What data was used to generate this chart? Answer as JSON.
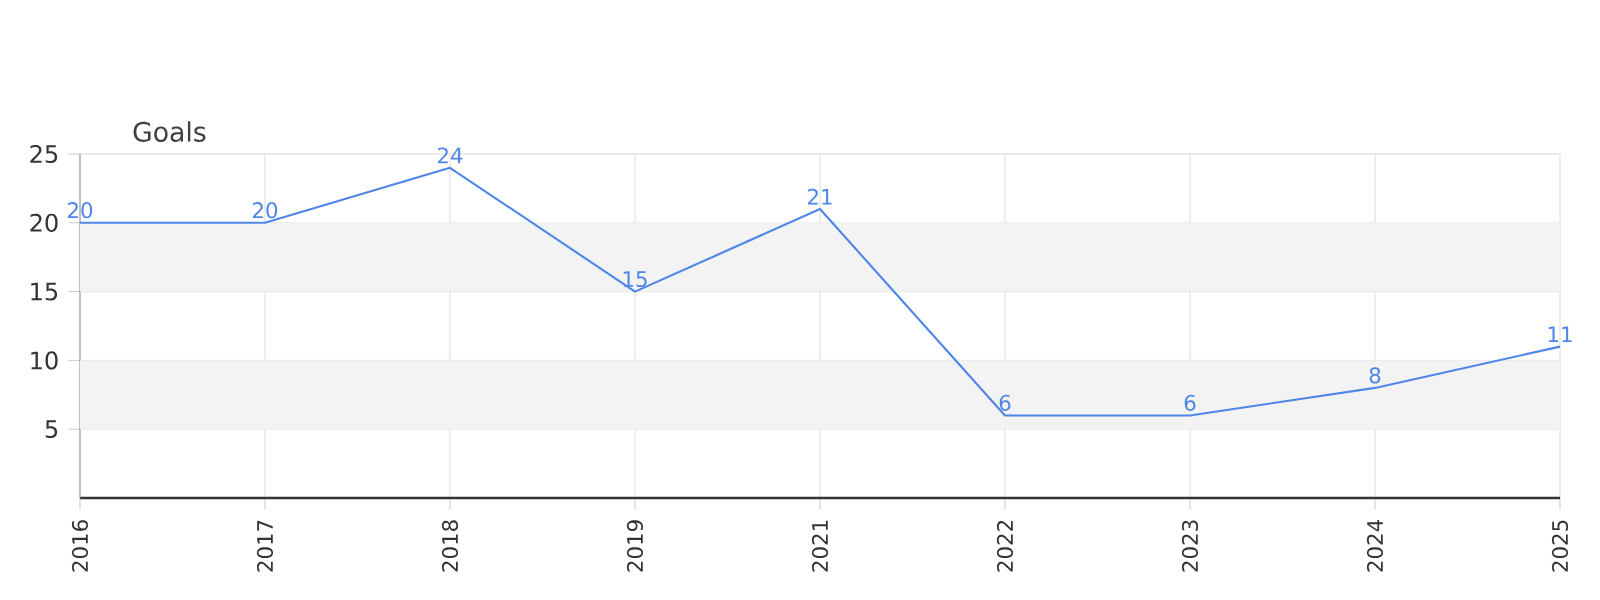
{
  "chart_data": {
    "type": "line",
    "ylabel": "Goals",
    "categories": [
      "2016",
      "2017",
      "2018",
      "2019",
      "2021",
      "2022",
      "2023",
      "2024",
      "2025"
    ],
    "series": [
      {
        "color": "#4f86e8",
        "values": [
          20,
          20,
          24,
          15,
          21,
          6,
          6,
          8,
          11
        ]
      }
    ],
    "ylim": [
      0,
      25
    ],
    "yticks": [
      5,
      10,
      15,
      20,
      25
    ],
    "bands": [
      {
        "axis": "y",
        "from": 5,
        "to": 10,
        "color": "#f3f3f3"
      },
      {
        "axis": "y",
        "from": 15,
        "to": 20,
        "color": "#f3f3f3"
      }
    ],
    "grid": true,
    "data_labels": true,
    "marker": "none",
    "line_style": "solid"
  }
}
